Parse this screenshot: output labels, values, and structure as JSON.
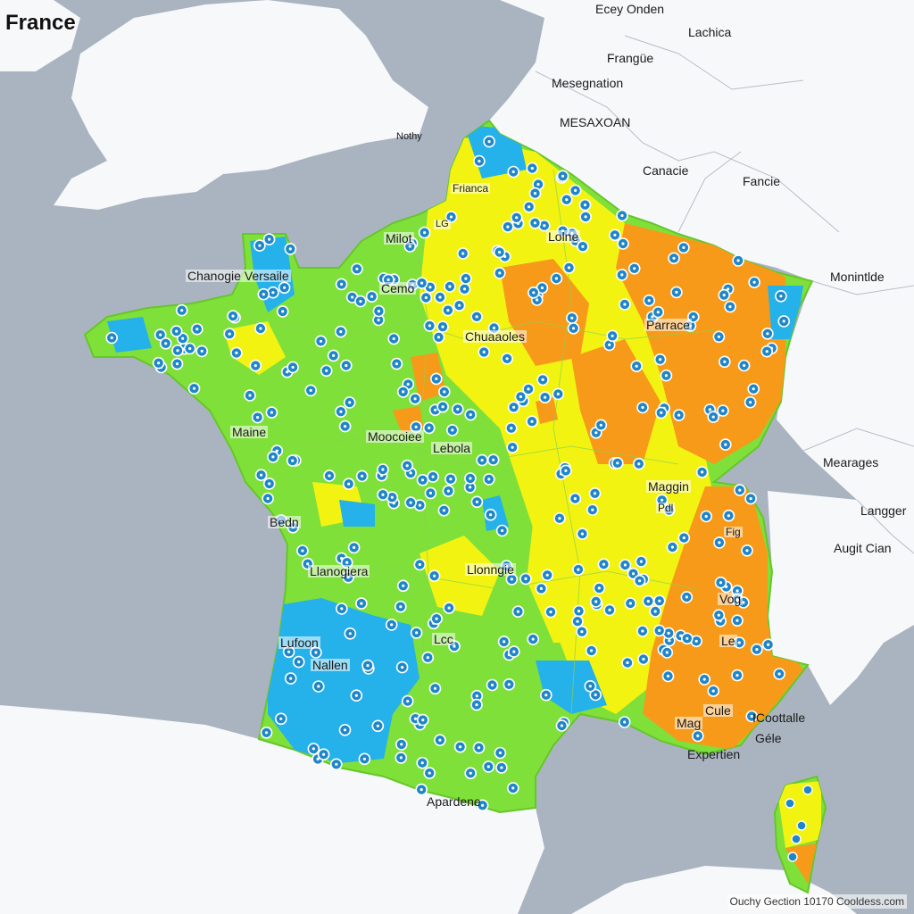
{
  "title": "France",
  "attribution": "Ouchy Gection 10170 Cooldess.com",
  "colors": {
    "sea": "#a9b4c0",
    "land": "#f7f8fa",
    "green": "#7fe03a",
    "yellow": "#f3f312",
    "orange": "#f79a19",
    "blue": "#25b1ea",
    "marker": "#1f86c9"
  },
  "outside_labels": [
    {
      "id": "e1",
      "text": "Ecey Onden"
    },
    {
      "id": "e2",
      "text": "Lachica"
    },
    {
      "id": "e3",
      "text": "Frangüe"
    },
    {
      "id": "e4",
      "text": "Mesegnation"
    },
    {
      "id": "e5",
      "text": "MESAXOAN"
    },
    {
      "id": "e6",
      "text": "Canacie"
    },
    {
      "id": "e7",
      "text": "Fancie"
    },
    {
      "id": "e8",
      "text": "Monintlde"
    },
    {
      "id": "e9",
      "text": "Mearages"
    },
    {
      "id": "e10",
      "text": "Langger"
    },
    {
      "id": "e11",
      "text": "Augit Cian"
    },
    {
      "id": "e12",
      "text": "Nothy"
    }
  ],
  "inside_labels": [
    {
      "id": "c1",
      "text": "Chanogie Versaile"
    },
    {
      "id": "c2",
      "text": "Frianca"
    },
    {
      "id": "c3",
      "text": "Milot"
    },
    {
      "id": "c4",
      "text": "Lolne"
    },
    {
      "id": "c5",
      "text": "Cemo"
    },
    {
      "id": "c6",
      "text": "Chuaaoles"
    },
    {
      "id": "c7",
      "text": "Parrace"
    },
    {
      "id": "c8",
      "text": "Maine"
    },
    {
      "id": "c9",
      "text": "Moocoiee"
    },
    {
      "id": "c10",
      "text": "Lebola"
    },
    {
      "id": "c11",
      "text": "Maggin"
    },
    {
      "id": "c12",
      "text": "Bedn"
    },
    {
      "id": "c13",
      "text": "Llanogiera"
    },
    {
      "id": "c14",
      "text": "Llonngie"
    },
    {
      "id": "c15",
      "text": "Vog"
    },
    {
      "id": "c16",
      "text": "Lufoon"
    },
    {
      "id": "c17",
      "text": "Nallen"
    },
    {
      "id": "c18",
      "text": "Lcc"
    },
    {
      "id": "c19",
      "text": "Le"
    },
    {
      "id": "c20",
      "text": "Mag"
    },
    {
      "id": "c21",
      "text": "Cule"
    },
    {
      "id": "c22",
      "text": "ICoottalle"
    },
    {
      "id": "c23",
      "text": "Géle"
    },
    {
      "id": "c24",
      "text": "Expertien"
    },
    {
      "id": "c25",
      "text": "Apardene"
    },
    {
      "id": "c26",
      "text": "LG"
    },
    {
      "id": "c27",
      "text": "Pdl"
    },
    {
      "id": "c28",
      "text": "Fig"
    }
  ]
}
